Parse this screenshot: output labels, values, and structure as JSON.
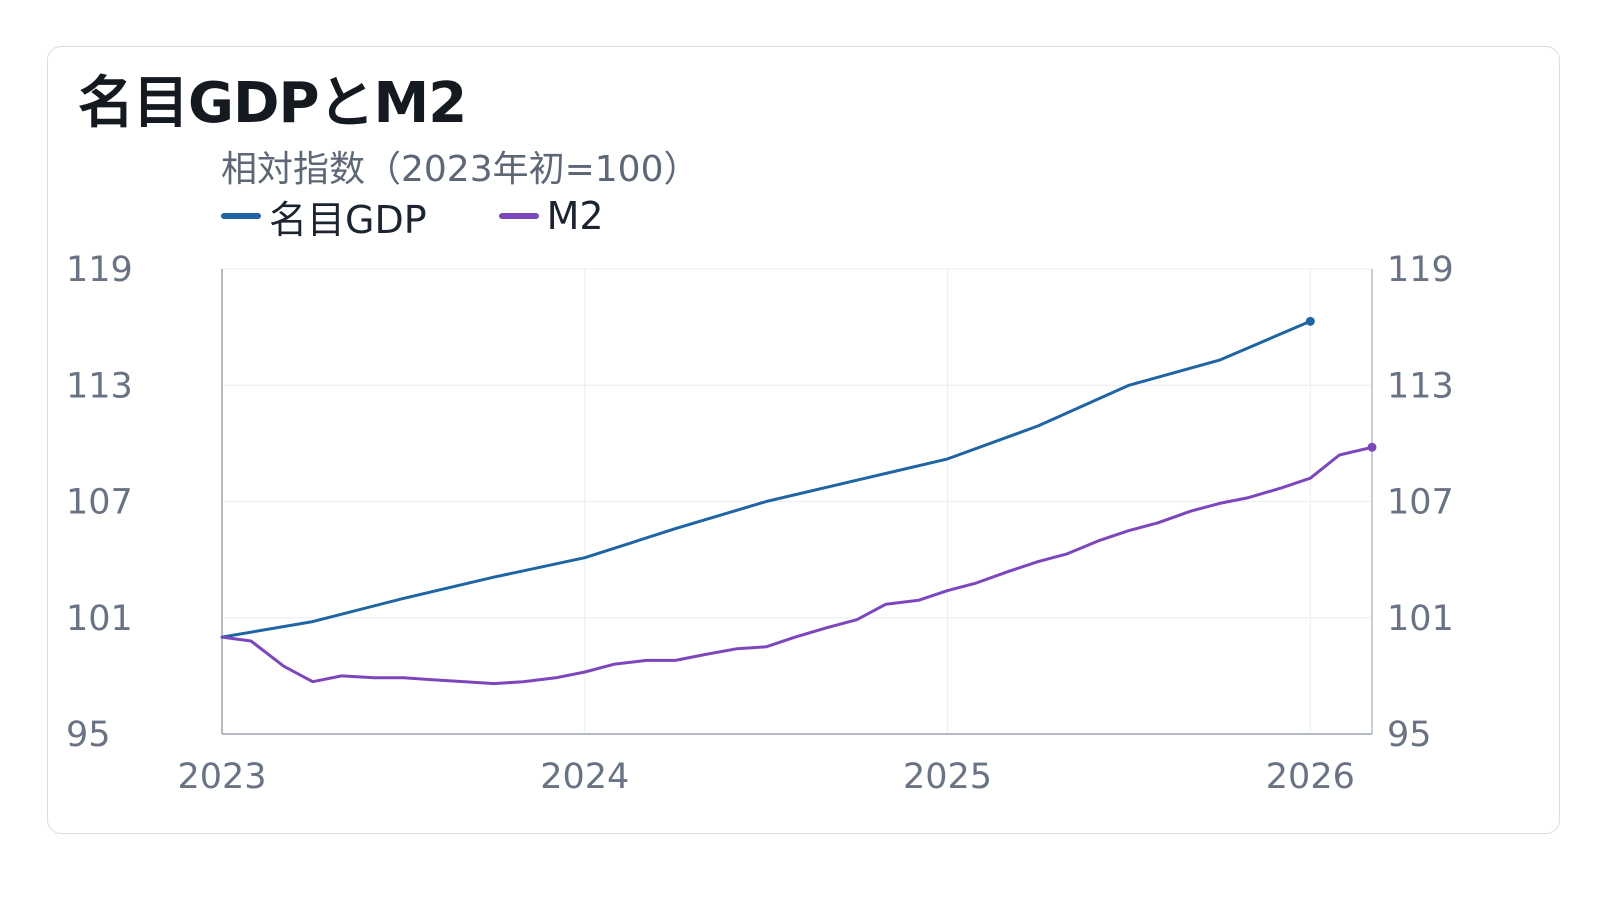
{
  "title": "名目GDPとM2",
  "subtitle": "相対指数（2023年初=100）",
  "chart_data": {
    "type": "line",
    "title": "名目GDPとM2",
    "subtitle": "相対指数（2023年初=100）",
    "y_ticks": [
      95,
      101,
      107,
      113,
      119
    ],
    "ylim": [
      95,
      119
    ],
    "x_ticks": [
      "2023",
      "2024",
      "2025",
      "2026"
    ],
    "xlim": [
      2023.0,
      2026.17
    ],
    "grid": true,
    "legend_position": "top-left",
    "dual_y_axis_labels": true,
    "series": [
      {
        "name": "名目GDP",
        "color": "#1f64a3",
        "x": [
          2023.0,
          2023.25,
          2023.5,
          2023.75,
          2024.0,
          2024.25,
          2024.5,
          2024.75,
          2025.0,
          2025.25,
          2025.5,
          2025.75,
          2026.0
        ],
        "y": [
          100.0,
          100.8,
          102.0,
          103.1,
          104.1,
          105.6,
          107.0,
          108.1,
          109.2,
          110.9,
          113.0,
          114.3,
          116.3
        ]
      },
      {
        "name": "M2",
        "color": "#7e46bd",
        "x": [
          2023.0,
          2023.08,
          2023.17,
          2023.25,
          2023.33,
          2023.42,
          2023.5,
          2023.58,
          2023.67,
          2023.75,
          2023.83,
          2023.92,
          2024.0,
          2024.08,
          2024.17,
          2024.25,
          2024.33,
          2024.42,
          2024.5,
          2024.58,
          2024.67,
          2024.75,
          2024.83,
          2024.92,
          2025.0,
          2025.08,
          2025.17,
          2025.25,
          2025.33,
          2025.42,
          2025.5,
          2025.58,
          2025.67,
          2025.75,
          2025.83,
          2025.92,
          2026.0,
          2026.08,
          2026.17
        ],
        "y": [
          100.0,
          99.8,
          98.5,
          97.7,
          98.0,
          97.9,
          97.9,
          97.8,
          97.7,
          97.6,
          97.7,
          97.9,
          98.2,
          98.6,
          98.8,
          98.8,
          99.1,
          99.4,
          99.5,
          100.0,
          100.5,
          100.9,
          101.7,
          101.9,
          102.4,
          102.8,
          103.4,
          103.9,
          104.3,
          105.0,
          105.5,
          105.9,
          106.5,
          106.9,
          107.2,
          107.7,
          108.2,
          109.4,
          109.8
        ]
      }
    ]
  }
}
